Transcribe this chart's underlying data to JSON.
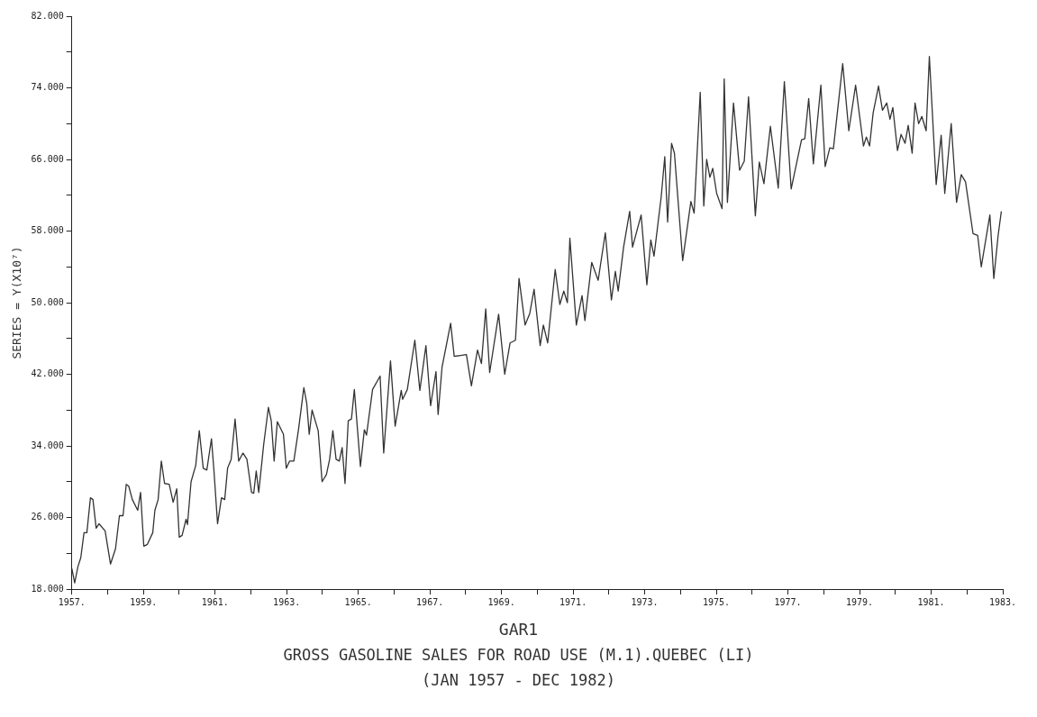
{
  "chart_data": {
    "type": "line",
    "title": "GAR1",
    "subtitle": "GROSS GASOLINE SALES FOR ROAD USE (M.1).QUEBEC (LI)",
    "annotations": [
      "(JAN 1957 - DEC 1982)"
    ],
    "ylabel": "SERIES = Y(X10⁷)",
    "x": [
      1957.0,
      1957.08,
      1957.17,
      1957.25,
      1957.34,
      1957.42,
      1957.52,
      1957.59,
      1957.68,
      1957.76,
      1957.93,
      1958.08,
      1958.22,
      1958.33,
      1958.43,
      1958.52,
      1958.59,
      1958.69,
      1958.84,
      1958.92,
      1959.01,
      1959.11,
      1959.26,
      1959.32,
      1959.41,
      1959.5,
      1959.59,
      1959.72,
      1959.83,
      1959.93,
      1960.0,
      1960.08,
      1960.19,
      1960.23,
      1960.33,
      1960.46,
      1960.56,
      1960.67,
      1960.77,
      1960.9,
      1960.97,
      1961.07,
      1961.18,
      1961.27,
      1961.35,
      1961.45,
      1961.56,
      1961.66,
      1961.78,
      1961.89,
      1962.02,
      1962.08,
      1962.15,
      1962.22,
      1962.36,
      1962.49,
      1962.57,
      1962.65,
      1962.74,
      1962.91,
      1962.99,
      1963.08,
      1963.2,
      1963.33,
      1963.48,
      1963.56,
      1963.63,
      1963.71,
      1963.88,
      1963.99,
      1964.11,
      1964.2,
      1964.29,
      1964.38,
      1964.47,
      1964.55,
      1964.63,
      1964.72,
      1964.81,
      1964.89,
      1965.06,
      1965.17,
      1965.23,
      1965.4,
      1965.61,
      1965.71,
      1965.9,
      1966.03,
      1966.2,
      1966.24,
      1966.37,
      1966.58,
      1966.72,
      1966.89,
      1967.02,
      1967.17,
      1967.23,
      1967.34,
      1967.58,
      1967.68,
      1968.02,
      1968.16,
      1968.33,
      1968.44,
      1968.56,
      1968.67,
      1968.92,
      1969.09,
      1969.24,
      1969.39,
      1969.49,
      1969.66,
      1969.79,
      1969.91,
      1970.08,
      1970.17,
      1970.29,
      1970.5,
      1970.63,
      1970.74,
      1970.84,
      1970.91,
      1971.09,
      1971.25,
      1971.33,
      1971.52,
      1971.7,
      1971.9,
      1972.07,
      1972.18,
      1972.26,
      1972.41,
      1972.58,
      1972.66,
      1972.9,
      1973.06,
      1973.17,
      1973.26,
      1973.46,
      1973.56,
      1973.64,
      1973.75,
      1973.83,
      1974.06,
      1974.29,
      1974.38,
      1974.55,
      1974.65,
      1974.73,
      1974.82,
      1974.9,
      1975.01,
      1975.16,
      1975.22,
      1975.31,
      1975.48,
      1975.65,
      1975.78,
      1975.9,
      1976.09,
      1976.2,
      1976.33,
      1976.51,
      1976.73,
      1976.9,
      1977.09,
      1977.38,
      1977.47,
      1977.58,
      1977.71,
      1977.92,
      1978.04,
      1978.17,
      1978.27,
      1978.53,
      1978.7,
      1978.89,
      1979.11,
      1979.19,
      1979.28,
      1979.38,
      1979.53,
      1979.64,
      1979.76,
      1979.85,
      1979.93,
      1980.06,
      1980.16,
      1980.27,
      1980.36,
      1980.47,
      1980.55,
      1980.65,
      1980.74,
      1980.86,
      1980.95,
      1981.14,
      1981.28,
      1981.38,
      1981.56,
      1981.71,
      1981.84,
      1981.96,
      1982.17,
      1982.3,
      1982.4,
      1982.64,
      1982.75,
      1982.87,
      1982.96
    ],
    "series": [
      {
        "color": "#333333",
        "values": [
          20.3,
          18.7,
          20.5,
          21.5,
          24.3,
          24.3,
          28.2,
          28.0,
          24.8,
          25.3,
          24.5,
          20.8,
          22.5,
          26.2,
          26.2,
          29.7,
          29.5,
          28.0,
          26.8,
          28.8,
          22.8,
          23.0,
          24.3,
          26.8,
          28.0,
          32.3,
          29.8,
          29.7,
          27.7,
          29.2,
          23.8,
          24.0,
          25.8,
          25.2,
          30.0,
          31.8,
          35.7,
          31.5,
          31.3,
          34.8,
          31.2,
          25.3,
          28.2,
          28.0,
          31.5,
          32.5,
          37.0,
          32.3,
          33.2,
          32.5,
          28.8,
          28.7,
          31.2,
          28.8,
          34.2,
          38.3,
          36.8,
          32.3,
          36.7,
          35.3,
          31.5,
          32.3,
          32.3,
          35.8,
          40.5,
          38.8,
          35.3,
          38.0,
          35.7,
          30.0,
          30.8,
          32.5,
          35.7,
          32.5,
          32.3,
          33.8,
          29.8,
          36.8,
          37.0,
          40.3,
          31.7,
          35.8,
          35.2,
          40.3,
          41.8,
          33.2,
          43.5,
          36.2,
          40.2,
          39.2,
          40.3,
          45.8,
          40.2,
          45.2,
          38.5,
          42.3,
          37.5,
          42.8,
          47.7,
          44.0,
          44.2,
          40.7,
          44.7,
          43.2,
          49.3,
          42.2,
          48.7,
          42.0,
          45.5,
          45.8,
          52.7,
          47.5,
          48.8,
          51.5,
          45.2,
          47.5,
          45.5,
          53.7,
          49.8,
          51.3,
          50.0,
          57.2,
          47.5,
          50.8,
          48.0,
          54.5,
          52.5,
          57.8,
          50.3,
          53.5,
          51.3,
          56.2,
          60.2,
          56.2,
          59.8,
          52.0,
          57.0,
          55.2,
          61.8,
          66.3,
          59.0,
          67.8,
          66.7,
          54.7,
          61.3,
          60.0,
          73.5,
          60.8,
          66.0,
          64.0,
          65.0,
          62.2,
          60.5,
          75.0,
          61.2,
          72.3,
          64.8,
          65.8,
          73.0,
          59.7,
          65.7,
          63.3,
          69.7,
          62.8,
          74.7,
          62.7,
          68.2,
          68.3,
          72.8,
          65.5,
          74.3,
          65.2,
          67.3,
          67.2,
          76.7,
          69.2,
          74.3,
          67.5,
          68.5,
          67.5,
          71.2,
          74.2,
          71.5,
          72.3,
          70.5,
          71.8,
          67.0,
          68.8,
          67.8,
          69.8,
          66.7,
          72.3,
          70.0,
          70.8,
          69.2,
          77.5,
          63.2,
          68.7,
          62.2,
          70.0,
          61.2,
          64.3,
          63.5,
          57.7,
          57.5,
          54.0,
          59.8,
          52.7,
          57.5,
          60.2
        ]
      }
    ],
    "xlim": [
      1957,
      1983
    ],
    "xticks": [
      {
        "value": 1957,
        "label": "1957."
      },
      {
        "value": 1958,
        "label": null
      },
      {
        "value": 1959,
        "label": "1959."
      },
      {
        "value": 1960,
        "label": null
      },
      {
        "value": 1961,
        "label": "1961."
      },
      {
        "value": 1962,
        "label": null
      },
      {
        "value": 1963,
        "label": "1963."
      },
      {
        "value": 1964,
        "label": null
      },
      {
        "value": 1965,
        "label": "1965."
      },
      {
        "value": 1966,
        "label": null
      },
      {
        "value": 1967,
        "label": "1967."
      },
      {
        "value": 1968,
        "label": null
      },
      {
        "value": 1969,
        "label": "1969."
      },
      {
        "value": 1970,
        "label": null
      },
      {
        "value": 1971,
        "label": "1971."
      },
      {
        "value": 1972,
        "label": null
      },
      {
        "value": 1973,
        "label": "1973."
      },
      {
        "value": 1974,
        "label": null
      },
      {
        "value": 1975,
        "label": "1975."
      },
      {
        "value": 1976,
        "label": null
      },
      {
        "value": 1977,
        "label": "1977."
      },
      {
        "value": 1978,
        "label": null
      },
      {
        "value": 1979,
        "label": "1979."
      },
      {
        "value": 1980,
        "label": null
      },
      {
        "value": 1981,
        "label": "1981."
      },
      {
        "value": 1982,
        "label": null
      },
      {
        "value": 1983,
        "label": "1983."
      }
    ],
    "ylim": [
      18,
      82
    ],
    "yticks": [
      {
        "value": 18,
        "label": "18.000"
      },
      {
        "value": 22,
        "label": null
      },
      {
        "value": 26,
        "label": "26.000"
      },
      {
        "value": 30,
        "label": null
      },
      {
        "value": 34,
        "label": "34.000"
      },
      {
        "value": 38,
        "label": null
      },
      {
        "value": 42,
        "label": "42.000"
      },
      {
        "value": 46,
        "label": null
      },
      {
        "value": 50,
        "label": "50.000"
      },
      {
        "value": 54,
        "label": null
      },
      {
        "value": 58,
        "label": "58.000"
      },
      {
        "value": 62,
        "label": null
      },
      {
        "value": 66,
        "label": "66.000"
      },
      {
        "value": 70,
        "label": null
      },
      {
        "value": 74,
        "label": "74.000"
      },
      {
        "value": 78,
        "label": null
      },
      {
        "value": 82,
        "label": "82.000"
      }
    ]
  }
}
